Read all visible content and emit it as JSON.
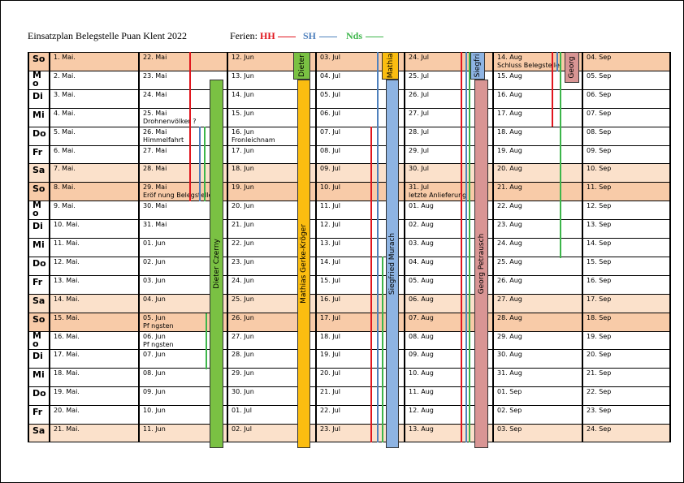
{
  "header": {
    "title": "Einsatzplan Belegstelle Puan Klent 2022",
    "ferien_label": "Ferien:",
    "legend": [
      {
        "name": "HH",
        "color": "#e0161e"
      },
      {
        "name": "SH",
        "color": "#4f81bd"
      },
      {
        "name": "Nds",
        "color": "#3cb54a"
      }
    ]
  },
  "colors": {
    "weekend_row": "#fbe1cb",
    "sunday_row": "#f8cba8",
    "dieter": "#7ac143",
    "mathias": "#fbbd10",
    "siegfried": "#8eb4e3",
    "georg": "#d99594"
  },
  "weekdays": [
    {
      "label": "So",
      "type": "sun"
    },
    {
      "label": "Mo",
      "type": "week"
    },
    {
      "label": "Di",
      "type": "week"
    },
    {
      "label": "Mi",
      "type": "week"
    },
    {
      "label": "Do",
      "type": "week"
    },
    {
      "label": "Fr",
      "type": "week"
    },
    {
      "label": "Sa",
      "type": "sat"
    },
    {
      "label": "So",
      "type": "sun"
    },
    {
      "label": "Mo",
      "type": "week"
    },
    {
      "label": "Di",
      "type": "week"
    },
    {
      "label": "Mi",
      "type": "week"
    },
    {
      "label": "Do",
      "type": "week"
    },
    {
      "label": "Fr",
      "type": "week"
    },
    {
      "label": "Sa",
      "type": "sat"
    },
    {
      "label": "So",
      "type": "sun"
    },
    {
      "label": "Mo",
      "type": "week"
    },
    {
      "label": "Di",
      "type": "week"
    },
    {
      "label": "Mi",
      "type": "week"
    },
    {
      "label": "Do",
      "type": "week"
    },
    {
      "label": "Fr",
      "type": "week"
    },
    {
      "label": "Sa",
      "type": "sat"
    }
  ],
  "columns": [
    {
      "dates": [
        "1. Mai.",
        "2. Mai.",
        "3. Mai.",
        "4. Mai.",
        "5. Mai.",
        "6. Mai.",
        "7. Mai.",
        "8. Mai.",
        "9. Mai.",
        "10. Mai.",
        "11. Mai.",
        "12. Mai.",
        "13. Mai.",
        "14. Mai.",
        "15. Mai.",
        "16. Mai.",
        "17. Mai.",
        "18. Mai.",
        "19. Mai.",
        "20. Mai.",
        "21. Mai."
      ],
      "notes": {}
    },
    {
      "dates": [
        "22. Mai",
        "23. Mai",
        "24. Mai",
        "25. Mai",
        "26. Mai",
        "27. Mai",
        "28. Mai",
        "29. Mai",
        "30. Mai",
        "31. Mai",
        "01. Jun",
        "02. Jun",
        "03. Jun",
        "04. Jun",
        "05. Jun",
        "06. Jun",
        "07. Jun",
        "08. Jun",
        "09. Jun",
        "10. Jun",
        "11. Jun"
      ],
      "notes": {
        "3": "Drohnenvölker ?",
        "4": "Himmelfahrt",
        "7": "Eröf nung Belegstelle",
        "14": "Pf ngsten",
        "15": "Pf ngsten"
      }
    },
    {
      "dates": [
        "12. Jun",
        "13. Jun",
        "14. Jun",
        "15. Jun",
        "16. Jun",
        "17. Jun",
        "18. Jun",
        "19. Jun",
        "20. Jun",
        "21. Jun",
        "22. Jun",
        "23. Jun",
        "24. Jun",
        "25. Jun",
        "26. Jun",
        "27. Jun",
        "28. Jun",
        "29. Jun",
        "30. Jun",
        "01. Jul",
        "02. Jul"
      ],
      "notes": {
        "4": "Fronleichnam"
      }
    },
    {
      "dates": [
        "03. Jul",
        "04. Jul",
        "05. Jul",
        "06. Jul",
        "07. Jul",
        "08. Jul",
        "09. Jul",
        "10. Jul",
        "11. Jul",
        "12. Jul",
        "13. Jul",
        "14. Jul",
        "15. Jul",
        "16. Jul",
        "17. Jul",
        "18. Jul",
        "19. Jul",
        "20. Jul",
        "21. Jul",
        "22. Jul",
        "23. Jul"
      ],
      "notes": {}
    },
    {
      "dates": [
        "24. Jul",
        "25. Jul",
        "26. Jul",
        "27. Jul",
        "28. Jul",
        "29. Jul",
        "30. Jul",
        "31. Jul",
        "01. Aug",
        "02. Aug",
        "03. Aug",
        "04. Aug",
        "05. Aug",
        "06. Aug",
        "07. Aug",
        "08. Aug",
        "09. Aug",
        "10. Aug",
        "11. Aug",
        "12. Aug",
        "13. Aug"
      ],
      "notes": {
        "7": "letzte Anlieferung"
      }
    },
    {
      "dates": [
        "14. Aug",
        "15. Aug",
        "16. Aug",
        "17. Aug",
        "18. Aug",
        "19. Aug",
        "20. Aug",
        "21. Aug",
        "22. Aug",
        "23. Aug",
        "24. Aug",
        "25. Aug",
        "26. Aug",
        "27. Aug",
        "28. Aug",
        "29. Aug",
        "30. Aug",
        "31. Aug",
        "01. Sep",
        "02. Sep",
        "03. Sep"
      ],
      "notes": {
        "0": "Schluss Belegstelle"
      }
    },
    {
      "dates": [
        "04. Sep",
        "05. Sep",
        "06. Sep",
        "07. Sep",
        "08. Sep",
        "09. Sep",
        "10. Sep",
        "11. Sep",
        "12. Sep",
        "13. Sep",
        "14. Sep",
        "15. Sep",
        "16. Sep",
        "17. Sep",
        "18. Sep",
        "19. Sep",
        "20. Sep",
        "21. Sep",
        "22. Sep",
        "23. Sep",
        "24. Sep"
      ],
      "notes": {}
    }
  ],
  "bars": [
    {
      "name": "Dieter Czerny",
      "color": "#7ac143"
    },
    {
      "name": "Dieter",
      "color": "#7ac143"
    },
    {
      "name": "Mathias Gerke-Kröger",
      "color": "#fbbd10"
    },
    {
      "name": "Mathia",
      "color": "#fbbd10"
    },
    {
      "name": "Siegfried Murach",
      "color": "#8eb4e3"
    },
    {
      "name": "Siegfri",
      "color": "#8eb4e3"
    },
    {
      "name": "Georg Petrausch",
      "color": "#d99594"
    },
    {
      "name": "Georg",
      "color": "#d99594"
    }
  ],
  "holidays": [
    {
      "region": "HH",
      "color": "#e0161e"
    },
    {
      "region": "HH",
      "color": "#e0161e"
    },
    {
      "region": "HH",
      "color": "#e0161e"
    },
    {
      "region": "HH",
      "color": "#e0161e"
    },
    {
      "region": "SH",
      "color": "#4f81bd"
    },
    {
      "region": "SH",
      "color": "#4f81bd"
    },
    {
      "region": "SH",
      "color": "#4f81bd"
    },
    {
      "region": "SH",
      "color": "#4f81bd"
    },
    {
      "region": "Nds",
      "color": "#3cb54a"
    },
    {
      "region": "Nds",
      "color": "#3cb54a"
    },
    {
      "region": "Nds",
      "color": "#3cb54a"
    },
    {
      "region": "Nds",
      "color": "#3cb54a"
    },
    {
      "region": "Nds",
      "color": "#3cb54a"
    }
  ]
}
